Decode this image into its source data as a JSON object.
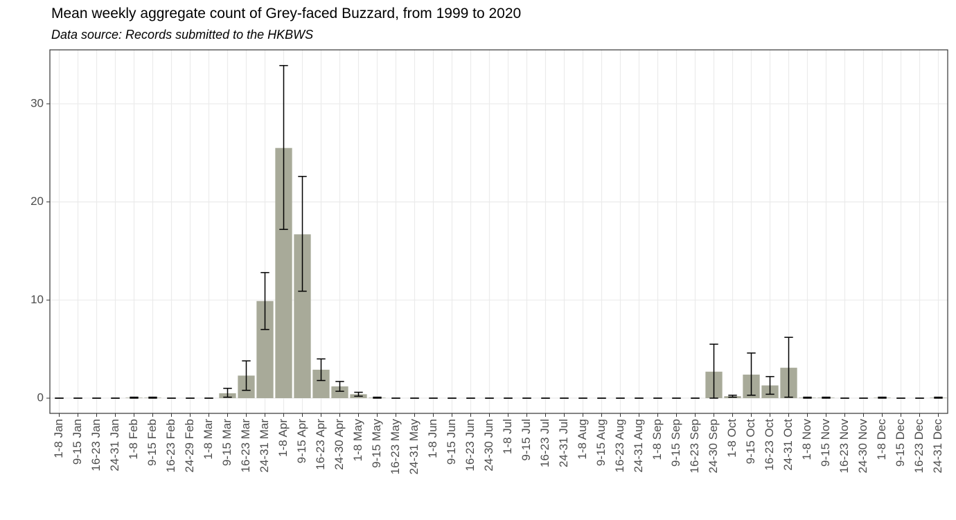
{
  "chart_data": {
    "type": "bar",
    "title": "Mean weekly aggregate count of Grey-faced Buzzard, from 1999 to 2020",
    "subtitle": "Data source: Records submitted to the HKBWS",
    "categories": [
      "1-8 Jan",
      "9-15 Jan",
      "16-23 Jan",
      "24-31 Jan",
      "1-8 Feb",
      "9-15 Feb",
      "16-23 Feb",
      "24-29 Feb",
      "1-8 Mar",
      "9-15 Mar",
      "16-23 Mar",
      "24-31 Mar",
      "1-8 Apr",
      "9-15 Apr",
      "16-23 Apr",
      "24-30 Apr",
      "1-8 May",
      "9-15 May",
      "16-23 May",
      "24-31 May",
      "1-8 Jun",
      "9-15 Jun",
      "16-23 Jun",
      "24-30 Jun",
      "1-8 Jul",
      "9-15 Jul",
      "16-23 Jul",
      "24-31 Jul",
      "1-8 Aug",
      "9-15 Aug",
      "16-23 Aug",
      "24-31 Aug",
      "1-8 Sep",
      "9-15 Sep",
      "16-23 Sep",
      "24-30 Sep",
      "1-8 Oct",
      "9-15 Oct",
      "16-23 Oct",
      "24-31 Oct",
      "1-8 Nov",
      "9-15 Nov",
      "16-23 Nov",
      "24-30 Nov",
      "1-8 Dec",
      "9-15 Dec",
      "16-23 Dec",
      "24-31 Dec"
    ],
    "values": [
      0,
      0,
      0,
      0,
      0.05,
      0.05,
      0,
      0,
      0,
      0.5,
      2.3,
      9.9,
      25.5,
      16.7,
      2.9,
      1.2,
      0.4,
      0.05,
      0,
      0,
      0,
      0,
      0,
      0,
      0,
      0,
      0,
      0,
      0,
      0,
      0,
      0,
      0,
      0,
      0,
      2.7,
      0.2,
      2.4,
      1.3,
      3.1,
      0.05,
      0.05,
      0,
      0,
      0.05,
      0,
      0,
      0.05
    ],
    "lower": [
      0,
      0,
      0,
      0,
      0,
      0,
      0,
      0,
      0,
      0.1,
      0.8,
      7.0,
      17.2,
      10.9,
      1.8,
      0.7,
      0.2,
      0,
      0,
      0,
      0,
      0,
      0,
      0,
      0,
      0,
      0,
      0,
      0,
      0,
      0,
      0,
      0,
      0,
      0,
      0,
      0.1,
      0.3,
      0.4,
      0.1,
      0,
      0,
      0,
      0,
      0,
      0,
      0,
      0
    ],
    "upper": [
      0,
      0,
      0,
      0,
      0.1,
      0.1,
      0,
      0,
      0,
      1.0,
      3.8,
      12.8,
      33.9,
      22.6,
      4.0,
      1.7,
      0.6,
      0.1,
      0,
      0,
      0,
      0,
      0,
      0,
      0,
      0,
      0,
      0,
      0,
      0,
      0,
      0,
      0,
      0,
      0,
      5.5,
      0.3,
      4.6,
      2.2,
      6.2,
      0.1,
      0.1,
      0,
      0,
      0.1,
      0,
      0,
      0.1
    ],
    "color": "#a8aa99",
    "error_color": "#000000",
    "ylim": [
      -1.55,
      35.5
    ],
    "yticks": [
      0,
      10,
      20,
      30
    ],
    "grid": true
  }
}
